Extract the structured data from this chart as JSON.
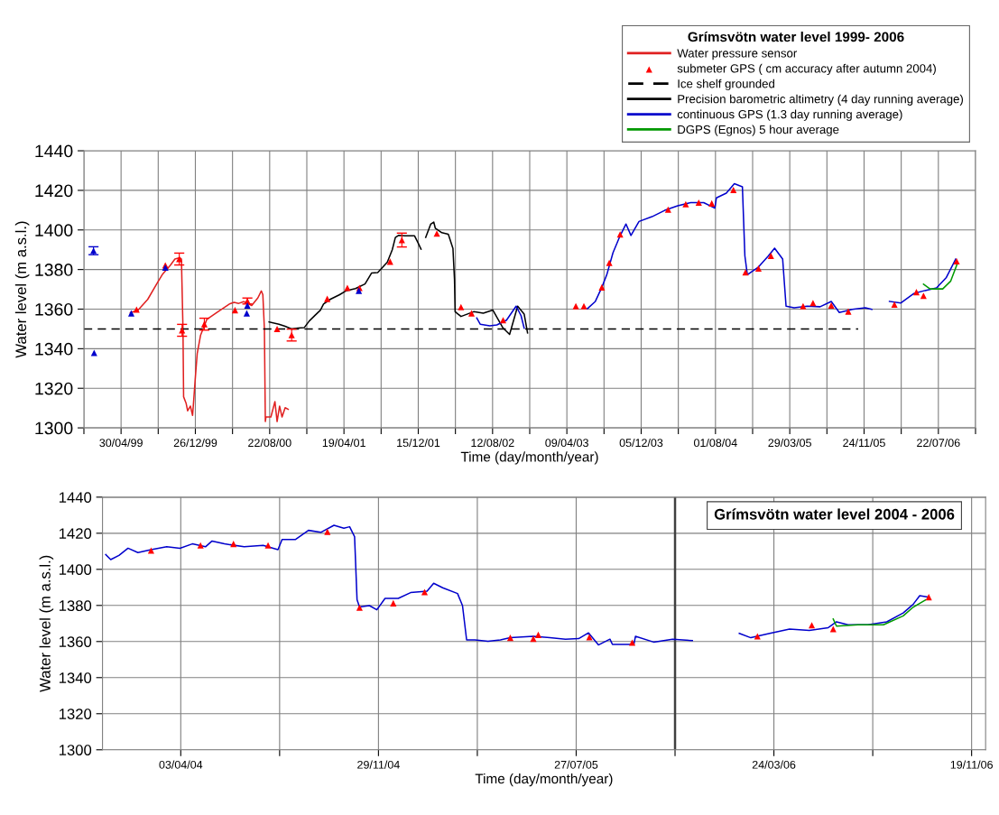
{
  "chart_data": [
    {
      "type": "line",
      "legend_title": "Grímsvötn water level 1999- 2006",
      "xlabel": "Time (day/month/year)",
      "ylabel": "Water level (m a.s.l.)",
      "xlim": [
        "1998-12-31",
        "2006-11-19"
      ],
      "ylim": [
        1300,
        1440
      ],
      "yticks": [
        1300,
        1320,
        1340,
        1360,
        1380,
        1400,
        1420,
        1440
      ],
      "xticks": [
        {
          "value": "1998-12-31",
          "label": null
        },
        {
          "value": "1999-04-30",
          "label": "30/04/99"
        },
        {
          "value": "1999-08-28",
          "label": null
        },
        {
          "value": "1999-12-26",
          "label": "26/12/99"
        },
        {
          "value": "2000-04-24",
          "label": null
        },
        {
          "value": "2000-08-22",
          "label": "22/08/00"
        },
        {
          "value": "2000-12-20",
          "label": null
        },
        {
          "value": "2001-04-19",
          "label": "19/04/01"
        },
        {
          "value": "2001-08-17",
          "label": null
        },
        {
          "value": "2001-12-15",
          "label": "15/12/01"
        },
        {
          "value": "2002-04-14",
          "label": null
        },
        {
          "value": "2002-08-12",
          "label": "12/08/02"
        },
        {
          "value": "2002-12-10",
          "label": null
        },
        {
          "value": "2003-04-09",
          "label": "09/04/03"
        },
        {
          "value": "2003-08-07",
          "label": null
        },
        {
          "value": "2003-12-05",
          "label": "05/12/03"
        },
        {
          "value": "2004-04-03",
          "label": null
        },
        {
          "value": "2004-08-01",
          "label": "01/08/04"
        },
        {
          "value": "2004-11-29",
          "label": null
        },
        {
          "value": "2005-03-29",
          "label": "29/03/05"
        },
        {
          "value": "2005-07-27",
          "label": null
        },
        {
          "value": "2005-11-24",
          "label": "24/11/05"
        },
        {
          "value": "2006-03-24",
          "label": null
        },
        {
          "value": "2006-07-22",
          "label": "22/07/06"
        },
        {
          "value": "2006-11-19",
          "label": null
        }
      ],
      "grid": true,
      "legend": "top right",
      "series": [
        {
          "name": "Water pressure sensor",
          "color": "#e02020",
          "x": [
            "1999-05-30",
            "1999-06-24",
            "1999-07-25",
            "1999-08-23",
            "1999-09-10",
            "1999-10-06",
            "1999-10-21",
            "1999-11-06",
            "1999-11-11",
            "1999-11-16",
            "1999-11-18",
            "1999-11-26",
            "1999-12-01",
            "1999-12-10",
            "1999-12-17",
            "1999-12-20",
            "1999-12-25",
            "2000-01-01",
            "2000-01-12",
            "2000-02-01",
            "2000-03-08",
            "2000-04-14",
            "2000-04-29",
            "2000-05-14",
            "2000-05-30",
            "2000-06-25",
            "2000-07-15",
            "2000-07-26",
            "2000-07-31",
            "2000-08-05",
            "2000-08-08",
            "2000-08-10",
            "2000-08-26",
            "2000-09-08",
            "2000-09-15",
            "2000-09-23",
            "2000-10-01",
            "2000-10-11",
            "2000-10-21"
          ],
          "values": [
            1358.2,
            1359.5,
            1364.9,
            1372.7,
            1377.4,
            1382.1,
            1385.3,
            1386,
            1385.3,
            1350,
            1315.7,
            1312.5,
            1308.6,
            1311,
            1306.3,
            1312.5,
            1323.5,
            1337.6,
            1346.9,
            1354.8,
            1358.7,
            1362.6,
            1363.4,
            1362.9,
            1363.8,
            1361.8,
            1365.7,
            1369.2,
            1367.3,
            1350,
            1303.2,
            1305.5,
            1305.5,
            1313.3,
            1303.2,
            1311,
            1305.5,
            1310.2,
            1309.4
          ]
        },
        {
          "name": "submeter GPS ( cm accuracy after autumn 2004)",
          "type": "scatter",
          "marker": "triangle",
          "color": "#ff0000",
          "x": [
            "1999-06-19",
            "1999-09-20",
            "1999-11-04",
            "1999-11-13",
            "2000-01-24",
            "2000-05-02",
            "2000-06-11",
            "2000-09-15",
            "2000-11-01",
            "2001-02-24",
            "2001-04-30",
            "2001-06-08",
            "2001-09-15",
            "2001-10-23",
            "2002-02-13",
            "2002-05-02",
            "2002-06-05",
            "2002-09-15",
            "2003-05-08",
            "2003-06-03",
            "2003-07-31",
            "2003-08-24",
            "2003-09-28",
            "2004-03-01",
            "2004-04-27",
            "2004-06-08",
            "2004-07-20",
            "2004-09-28",
            "2004-11-06",
            "2004-12-18",
            "2005-01-27",
            "2005-05-11",
            "2005-06-12",
            "2005-08-10",
            "2005-10-04",
            "2006-03-02",
            "2006-05-12",
            "2006-06-04",
            "2006-09-19"
          ],
          "values": [
            1359.8,
            1382.1,
            1385.3,
            1349.3,
            1352.4,
            1359.5,
            1364.1,
            1350,
            1346.9,
            1365.2,
            1370.7,
            1370.7,
            1384,
            1394.9,
            1398.2,
            1361,
            1357.9,
            1354.4,
            1361.5,
            1361.5,
            1371,
            1383.4,
            1397.7,
            1410.3,
            1413,
            1413.8,
            1413.4,
            1420.2,
            1378.6,
            1380.5,
            1386.9,
            1361.5,
            1363.1,
            1361.8,
            1358.8,
            1362.3,
            1368.6,
            1366.7,
            1384.2
          ],
          "errors": [
            null,
            null,
            3,
            3,
            3,
            null,
            1.5,
            null,
            3,
            null,
            null,
            null,
            null,
            3.5,
            null,
            null,
            null,
            null,
            null,
            null,
            null,
            null,
            null,
            null,
            null,
            null,
            null,
            null,
            null,
            null,
            null,
            null,
            null,
            null,
            null,
            null,
            null,
            null,
            null
          ]
        },
        {
          "name": "Ice shelf grounded",
          "line_style": "dashed",
          "color": "#000000",
          "x": [
            "1998-12-31",
            "2005-11-05"
          ],
          "values": [
            1350,
            1350
          ]
        },
        {
          "name": "Precision barometric altimetry (4 day running average)",
          "color": "#000000",
          "x": [
            "2000-08-20",
            "2000-09-21",
            "2000-10-11",
            "2000-11-01",
            "2000-11-21",
            "2000-12-12",
            "2000-12-28",
            "2001-01-17",
            "2001-02-02",
            "2001-02-12",
            "2001-03-05",
            "2001-04-05",
            "2001-04-25",
            "2001-05-26",
            "2001-06-26",
            "2001-07-17",
            "2001-08-06",
            "2001-09-06",
            "2001-09-22",
            "2001-10-02",
            "2001-10-13",
            "2001-11-02",
            "2001-12-03",
            "2001-12-13",
            "2001-12-24",
            "2001-12-31",
            "2002-01-08",
            "2002-01-24",
            "2002-02-03",
            "2002-02-08",
            "2002-03-01",
            "2002-03-22",
            "2002-04-06",
            "2002-04-11",
            "2002-04-13",
            "2002-05-02",
            "2002-06-12",
            "2002-07-13",
            "2002-08-13",
            "2002-09-15",
            "2002-10-06",
            "2002-11-01",
            "2002-11-22",
            "2002-12-03"
          ],
          "values": [
            1353.5,
            1352.4,
            1351.3,
            1350,
            1350.4,
            1350.7,
            1354,
            1357.1,
            1359.5,
            1362.6,
            1364.9,
            1367.3,
            1369.2,
            1370.4,
            1372.7,
            1378.2,
            1378.5,
            1383.7,
            1390,
            1396.2,
            1397.3,
            1397,
            1397,
            1393.9,
            1390.3,
            null,
            1396.2,
            1402.9,
            1404,
            1400.9,
            1398.6,
            1397.8,
            1390.7,
            1375.1,
            1358.7,
            1356.3,
            1358.7,
            1357.9,
            1359.5,
            1350.4,
            1347.2,
            1361.5,
            1357.5,
            1348
          ]
        },
        {
          "name": "continuous GPS (1.3 day running average)",
          "color": "#0000cc",
          "x": [
            "2002-06-22",
            "2002-07-03",
            "2002-08-03",
            "2002-08-26",
            "2002-09-26",
            "2002-10-27",
            "2002-11-12",
            "2002-11-22",
            "2003-03-01",
            "2003-06-14",
            "2003-07-10",
            "2003-07-31",
            "2003-08-16",
            "2003-09-05",
            "2003-09-26",
            "2003-10-17",
            "2003-11-02",
            "2003-11-28",
            "2004-01-09",
            "2004-02-19",
            "2004-04-01",
            "2004-05-13",
            "2004-06-24",
            "2004-07-30",
            "2004-08-04",
            "2004-09-05",
            "2004-10-01",
            "2004-10-27",
            "2004-11-04",
            "2004-11-12",
            "2004-12-18",
            "2005-01-19",
            "2005-02-08",
            "2005-03-06",
            "2005-03-17",
            "2005-04-12",
            "2005-05-24",
            "2005-07-05",
            "2005-08-10",
            "2005-09-05",
            "2005-10-17",
            "2005-11-28",
            "2005-12-19",
            "2006-01-15",
            "2006-02-14",
            "2006-03-23",
            "2006-05-04",
            "2006-06-09",
            "2006-07-16",
            "2006-08-16",
            "2006-09-16"
          ],
          "values": [
            1355.5,
            1352.4,
            1351.6,
            1352,
            1354.4,
            1361.5,
            1356.7,
            1350.4,
            null,
            1360.2,
            1363.9,
            1371,
            1377.4,
            1388.5,
            1396.4,
            1403,
            1397.2,
            1404.3,
            1406.7,
            1409.9,
            1412.2,
            1413.8,
            1413.8,
            1411,
            1416.2,
            1418.6,
            1423.4,
            1421.8,
            1386.9,
            1377.4,
            1381.3,
            1386.9,
            1390.8,
            1385.3,
            1361.5,
            1360.7,
            1361.5,
            1361.2,
            1363.9,
            1358.3,
            1359.9,
            1360.7,
            1359.9,
            null,
            1363.9,
            1363.1,
            1367.9,
            1369.4,
            1370.7,
            1375.8,
            1385.3
          ]
        },
        {
          "name": "DGPS (Egnos) 5 hour average",
          "color": "#009900",
          "x": [
            "2006-06-04",
            "2006-06-25",
            "2006-08-05",
            "2006-08-31",
            "2006-09-21"
          ],
          "values": [
            1372.6,
            1370.2,
            1370.2,
            1374.2,
            1382.9
          ]
        },
        {
          "type": "scatter",
          "marker": "triangle",
          "color": "#0000cc",
          "x": [
            "1999-01-31",
            "1999-02-02",
            "1999-06-02",
            "1999-09-20",
            "2000-06-09",
            "2000-06-11",
            "2001-06-06"
          ],
          "values": [
            1389.5,
            1337.9,
            1357.9,
            1381,
            1357.9,
            1361.8,
            1369.3
          ],
          "errors": [
            2,
            null,
            null,
            null,
            null,
            null,
            null
          ]
        }
      ]
    },
    {
      "type": "line",
      "title": "Grímsvötn water level 2004 - 2006",
      "xlabel": "Time (day/month/year)",
      "ylabel": "Water level (m a.s.l.)",
      "xlim": [
        "2003-12-30",
        "2006-12-06"
      ],
      "ylim": [
        1300,
        1440
      ],
      "yticks": [
        1300,
        1320,
        1340,
        1360,
        1380,
        1400,
        1420,
        1440
      ],
      "xticks": [
        {
          "value": "2004-04-03",
          "label": "03/04/04"
        },
        {
          "value": "2004-08-01",
          "label": null
        },
        {
          "value": "2004-11-29",
          "label": "29/11/04"
        },
        {
          "value": "2005-03-29",
          "label": null
        },
        {
          "value": "2005-07-27",
          "label": "27/07/05"
        },
        {
          "value": "2005-11-24",
          "label": null
        },
        {
          "value": "2006-03-24",
          "label": "24/03/06"
        },
        {
          "value": "2006-07-22",
          "label": null
        },
        {
          "value": "2006-11-19",
          "label": "19/11/06"
        }
      ],
      "grid": true,
      "ref_lines": [
        {
          "axis": "x",
          "value": "2005-11-24",
          "color": "#404040"
        }
      ],
      "series": [
        {
          "color": "#0000cc",
          "x": [
            "2004-01-03",
            "2004-01-09",
            "2004-01-19",
            "2004-01-30",
            "2004-02-11",
            "2004-02-27",
            "2004-03-17",
            "2004-04-02",
            "2004-04-17",
            "2004-05-03",
            "2004-05-11",
            "2004-05-26",
            "2004-06-19",
            "2004-07-12",
            "2004-07-30",
            "2004-08-04",
            "2004-08-20",
            "2004-09-05",
            "2004-09-20",
            "2004-10-06",
            "2004-10-18",
            "2004-10-25",
            "2004-10-31",
            "2004-11-03",
            "2004-11-06",
            "2004-11-18",
            "2004-11-27",
            "2004-12-07",
            "2004-12-23",
            "2005-01-07",
            "2005-01-27",
            "2005-02-04",
            "2005-02-15",
            "2005-03-05",
            "2005-03-11",
            "2005-03-16",
            "2005-03-26",
            "2005-04-11",
            "2005-04-26",
            "2005-05-08",
            "2005-06-05",
            "2005-06-25",
            "2005-07-14",
            "2005-07-30",
            "2005-08-11",
            "2005-08-23",
            "2005-09-06",
            "2005-09-09",
            "2005-10-05",
            "2005-10-07",
            "2005-10-29",
            "2005-11-21",
            "2005-12-15",
            "2006-01-15",
            "2006-02-10",
            "2006-02-24",
            "2006-03-19",
            "2006-04-12",
            "2006-05-06",
            "2006-05-29",
            "2006-06-08",
            "2006-06-22",
            "2006-07-16",
            "2006-08-08",
            "2006-08-28",
            "2006-09-09",
            "2006-09-17",
            "2006-09-28"
          ],
          "values": [
            1408.2,
            1405.4,
            1407.7,
            1411.7,
            1409.3,
            1410.9,
            1412.5,
            1411.7,
            1414.1,
            1412.5,
            1415.7,
            1414.1,
            1412.5,
            1413.3,
            1410.9,
            1416.5,
            1416.5,
            1421.6,
            1420.5,
            1424.4,
            1422.8,
            1423.6,
            1418.1,
            1383.1,
            1379.1,
            1379.9,
            1377.6,
            1383.9,
            1383.9,
            1387.1,
            1387.9,
            1392.3,
            1389.8,
            1386.6,
            1379.9,
            1360.9,
            1360.9,
            1360.1,
            1360.9,
            1362.1,
            1362.9,
            1362.1,
            1361.3,
            1361.6,
            1364.8,
            1358.1,
            1361.3,
            1358.4,
            1358.4,
            1362.9,
            1359.7,
            1361.3,
            1360.5,
            null,
            1364.5,
            1362.1,
            1364.5,
            1366.9,
            1366.1,
            1367.7,
            1370.9,
            1369.3,
            1369.3,
            1370.9,
            1375.8,
            1380.6,
            1385.4,
            1384.6
          ]
        },
        {
          "color": "#009900",
          "x": [
            "2006-06-04",
            "2006-06-08",
            "2006-07-04",
            "2006-08-04",
            "2006-08-28",
            "2006-09-09",
            "2006-09-24"
          ],
          "values": [
            1372.5,
            1368.5,
            1369.3,
            1369.3,
            1374.2,
            1379,
            1383
          ]
        },
        {
          "type": "scatter",
          "marker": "triangle",
          "color": "#ff0000",
          "x": [
            "2004-02-27",
            "2004-04-27",
            "2004-06-06",
            "2004-07-18",
            "2004-09-28",
            "2004-11-06",
            "2004-12-17",
            "2005-01-24",
            "2005-05-08",
            "2005-06-05",
            "2005-06-11",
            "2005-08-12",
            "2005-10-03",
            "2006-03-04",
            "2006-05-09",
            "2006-06-04",
            "2006-09-28"
          ],
          "values": [
            1410.4,
            1413.3,
            1414.1,
            1413.3,
            1420.8,
            1378.8,
            1381.2,
            1387.4,
            1362.1,
            1361.6,
            1363.7,
            1362.4,
            1359.4,
            1362.9,
            1369,
            1366.9,
            1384.6
          ]
        }
      ]
    }
  ]
}
